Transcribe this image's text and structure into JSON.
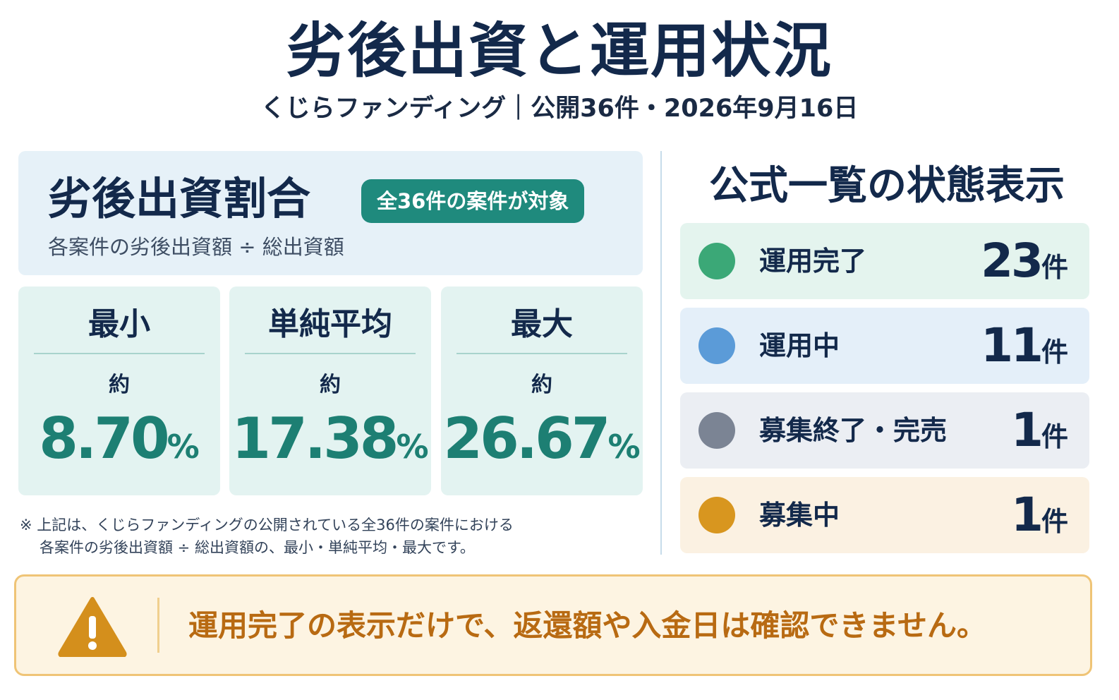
{
  "header": {
    "title": "劣後出資と運用状況",
    "subtitle": "くじらファンディング｜公開36件・2026年9月16日"
  },
  "ratio": {
    "title": "劣後出資割合",
    "badge": "全36件の案件が対象",
    "formula": "各案件の劣後出資額 ÷ 総出資額",
    "stats": [
      {
        "label": "最小",
        "approx": "約",
        "value": "8.70",
        "unit": "%"
      },
      {
        "label": "単純平均",
        "approx": "約",
        "value": "17.38",
        "unit": "%"
      },
      {
        "label": "最大",
        "approx": "約",
        "value": "26.67",
        "unit": "%"
      }
    ],
    "note_line1": "※ 上記は、くじらファンディングの公開されている全36件の案件における",
    "note_line2": "各案件の劣後出資額 ÷ 総出資額の、最小・単純平均・最大です。"
  },
  "status": {
    "title": "公式一覧の状態表示",
    "items": [
      {
        "label": "運用完了",
        "count": "23",
        "unit": "件",
        "dot_color": "#3ba877",
        "bg_color": "#e4f4ee"
      },
      {
        "label": "運用中",
        "count": "11",
        "unit": "件",
        "dot_color": "#5b9bd8",
        "bg_color": "#e4eff9"
      },
      {
        "label": "募集終了・完売",
        "count": "1",
        "unit": "件",
        "dot_color": "#7b8494",
        "bg_color": "#ebeef3"
      },
      {
        "label": "募集中",
        "count": "1",
        "unit": "件",
        "dot_color": "#d8961f",
        "bg_color": "#fbf1e2"
      }
    ]
  },
  "warning": {
    "icon": "warning-triangle-icon",
    "text": "運用完了の表示だけで、返還額や入金日は確認できません。"
  }
}
